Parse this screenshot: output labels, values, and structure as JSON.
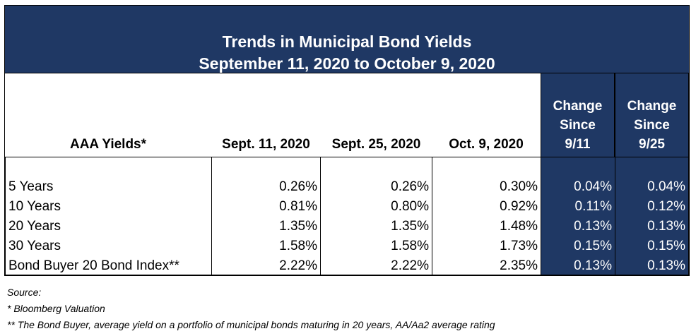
{
  "title": {
    "line1": "Trends in Municipal Bond Yields",
    "line2": "September 11, 2020 to October 9, 2020"
  },
  "headers": [
    "AAA Yields*",
    "Sept. 11, 2020",
    "Sept. 25, 2020",
    "Oct. 9, 2020",
    "Change Since 9/11",
    "Change Since 9/25"
  ],
  "rows": [
    [
      "5 Years",
      "0.26%",
      "0.26%",
      "0.30%",
      "0.04%",
      "0.04%"
    ],
    [
      "10 Years",
      "0.81%",
      "0.80%",
      "0.92%",
      "0.11%",
      "0.12%"
    ],
    [
      "20 Years",
      "1.35%",
      "1.35%",
      "1.48%",
      "0.13%",
      "0.13%"
    ],
    [
      "30 Years",
      "1.58%",
      "1.58%",
      "1.73%",
      "0.15%",
      "0.15%"
    ],
    [
      "Bond Buyer 20 Bond Index**",
      "2.22%",
      "2.22%",
      "2.35%",
      "0.13%",
      "0.13%"
    ]
  ],
  "notes": [
    "Source:",
    "* Bloomberg Valuation",
    "** The Bond Buyer, average yield on a portfolio of municipal bonds maturing in 20 years, AA/Aa2 average rating"
  ],
  "colors": {
    "navy": "#1f3864"
  }
}
